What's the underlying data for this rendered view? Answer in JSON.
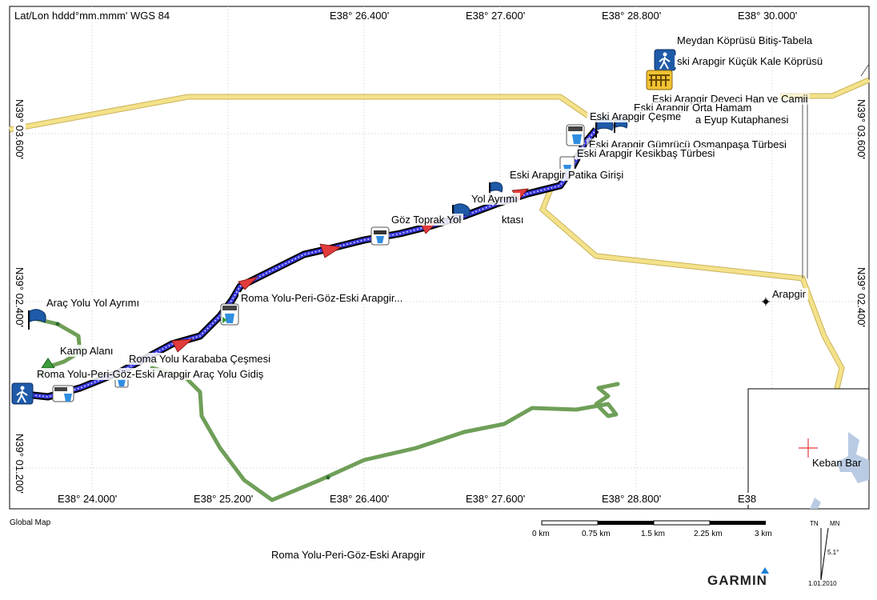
{
  "map": {
    "projection_label": "Lat/Lon hddd°mm.mmm' WGS 84",
    "top_lon_ticks": [
      "E38° 26.400'",
      "E38° 27.600'",
      "E38° 28.800'",
      "E38° 30.000'"
    ],
    "bottom_lon_ticks": [
      "E38° 24.000'",
      "E38° 25.200'",
      "E38° 26.400'",
      "E38° 27.600'",
      "E38° 28.800'",
      "E38"
    ],
    "left_lat_ticks": [
      "N39° 03.600'",
      "N39° 02.400'",
      "N39° 01.200'"
    ],
    "right_lat_ticks": [
      "N39° 03.600'",
      "N39° 02.400'"
    ],
    "place_label": "Arapgir",
    "waypoints": [
      "Meydan Köprüsü Bitiş-Tabela",
      "ski Arapgir Küçük Kale Köprüsü",
      "Eski Arapgir Deveci Han ve Camii",
      "Eski Arapgir Orta Hamam",
      "Eski Arapgir Çeşme",
      "a Eyup Kutaphanesi",
      "Eski Arapgir Gümrücü Osmanpaşa Türbesi",
      "Eski Arapgir Kesikbaş Türbesi",
      "Eski Arapgir Patika Girişi",
      "Yol Ayrımı",
      "Göz Toprak Yol",
      "ktası",
      "Roma Yolu-Peri-Göz-Eski Arapgir...",
      "Araç Yolu Yol Ayrımı",
      "Kamp Alanı",
      "Roma Yolu Karababa Çeşmesi",
      "Roma Yolu-Peri-Göz-Eski Arapgir Araç Yolu Gidiş"
    ],
    "colors": {
      "road": "#f3e28a",
      "road_edge": "#cbb25a",
      "green_track": "#6f9f58",
      "route_fill": "#3b3be0",
      "route_edge": "#000000",
      "arrow": "#e23b3b",
      "grid": "#c8c8c8",
      "water": "#b9cbe3"
    }
  },
  "inset": {
    "label": "Keban Bar"
  },
  "footer": {
    "source": "Global Map",
    "scale_labels": [
      "0 km",
      "0.75 km",
      "1.5 km",
      "2.25 km",
      "3 km"
    ],
    "north_tn": "TN",
    "north_mn": "MN",
    "declination": "5.1°",
    "date": "1.01.2010",
    "title": "Roma Yolu-Peri-Göz-Eski Arapgir",
    "brand": "GARMIN"
  }
}
